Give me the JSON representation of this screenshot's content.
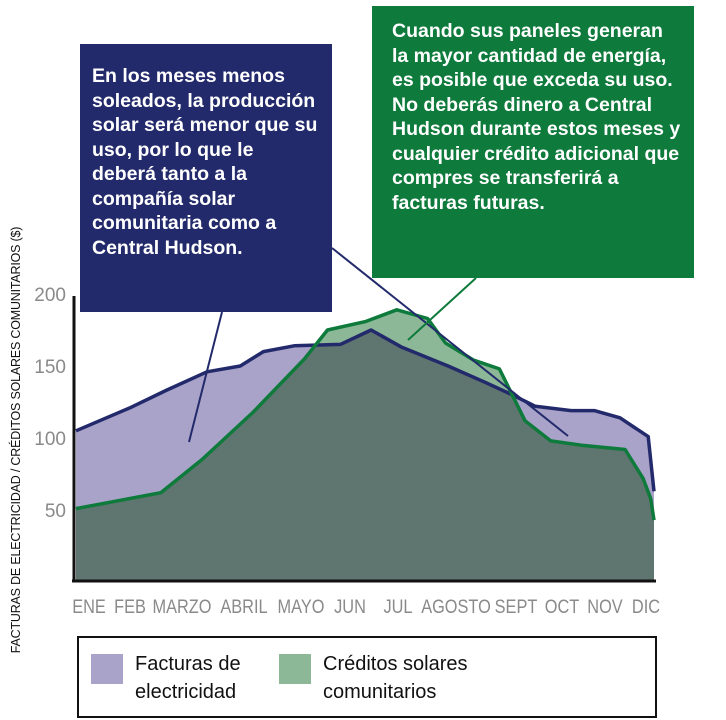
{
  "chart_data": {
    "type": "area",
    "categories": [
      "ENE",
      "FEB",
      "MARZO",
      "ABRIL",
      "MAYO",
      "JUN",
      "JUL",
      "AGOSTO",
      "SEPT",
      "OCT",
      "NOV",
      "DIC"
    ],
    "ylabel": "FACTURAS DE ELECTRICIDAD  /  CRÉDITOS SOLARES COMUNITARIOS ($)",
    "ylim": [
      0,
      200
    ],
    "yticks": [
      50,
      100,
      150,
      200
    ],
    "grid": false,
    "legend_position": "bottom",
    "series": [
      {
        "name": "Facturas de electricidad",
        "color": "#a9a3c9",
        "line_color": "#232a6b",
        "x": [
          0.0,
          0.8,
          1.5,
          2.3,
          2.95,
          3.4,
          4.0,
          4.9,
          5.5,
          6.1,
          7.0,
          7.7,
          8.25,
          8.7,
          9.4,
          9.85,
          10.35,
          10.9,
          11.2
        ],
        "values": [
          105,
          121,
          133,
          146,
          150,
          160,
          164,
          165,
          175,
          163,
          150,
          139,
          130,
          122,
          119,
          119,
          114,
          101,
          63
        ]
      },
      {
        "name": "Créditos solares comunitarios",
        "color": "#8cb897",
        "line_color": "#0e7a3b",
        "x": [
          0.0,
          1.4,
          2.2,
          3.2,
          4.2,
          4.65,
          5.4,
          6.0,
          6.6,
          6.95,
          7.5,
          8.0,
          8.5,
          9.0,
          9.6,
          10.45,
          10.8,
          10.95,
          11.2
        ],
        "values": [
          51,
          62,
          85,
          118,
          155,
          175,
          181,
          189,
          183,
          166,
          154,
          148,
          112,
          98,
          95,
          92,
          72,
          58,
          43
        ]
      }
    ],
    "annotations": [
      "En los meses menos soleados, la producción solar será menor que su uso, por lo que le deberá tanto a la compañía solar comunitaria como a Central Hudson.",
      "Cuando sus paneles generan la mayor cantidad de energía, es posible que exceda su uso. No deberás dinero a Central Hudson durante estos meses y cualquier crédito adicional que compres se transferirá a facturas futuras."
    ],
    "axis_color": "#111111",
    "tick_label_color": "#8a8a8a"
  },
  "colors": {
    "navy": "#232a6b",
    "green": "#0e7a3b",
    "overlap": "#5f756f"
  }
}
